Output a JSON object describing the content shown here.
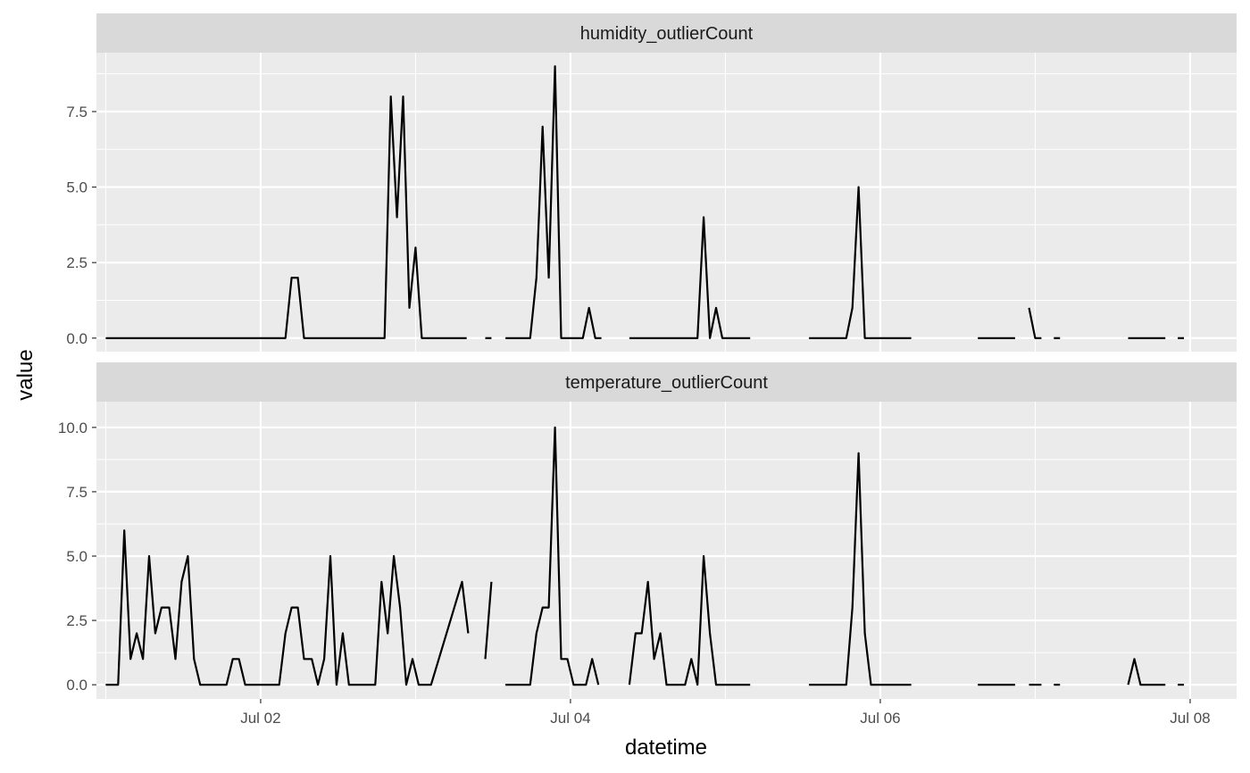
{
  "chart_data": {
    "type": "line",
    "facet_layout": "stacked vertically, shared x-axis",
    "xlabel": "datetime",
    "ylabel": "value",
    "x_ticks": [
      "Jul 02",
      "Jul 04",
      "Jul 06",
      "Jul 08"
    ],
    "x_tick_values": [
      1,
      3,
      5,
      7
    ],
    "xlim": [
      -0.06,
      7.3
    ],
    "grid": true,
    "line_color": "#000000",
    "panel_background": "#ebebeb",
    "strip_background": "#d9d9d9",
    "x_unit_note": "x values are days after Jul 01 00:00",
    "panels": [
      {
        "name": "humidity_outlierCount",
        "ylim": [
          -0.45,
          9.45
        ],
        "y_ticks": [
          0.0,
          2.5,
          5.0,
          7.5
        ],
        "y_tick_labels": [
          "0.0",
          "2.5",
          "5.0",
          "7.5"
        ],
        "segments": [
          [
            [
              0.0,
              0
            ],
            [
              1.16,
              0
            ],
            [
              1.2,
              2
            ],
            [
              1.24,
              2
            ],
            [
              1.28,
              0
            ],
            [
              1.8,
              0
            ],
            [
              1.84,
              8
            ],
            [
              1.88,
              4
            ],
            [
              1.92,
              8
            ],
            [
              1.96,
              1
            ],
            [
              2.0,
              3
            ],
            [
              2.04,
              0
            ],
            [
              2.33,
              0
            ]
          ],
          [
            [
              2.45,
              0
            ],
            [
              2.49,
              0
            ]
          ],
          [
            [
              2.58,
              0
            ],
            [
              2.74,
              0
            ],
            [
              2.78,
              2
            ],
            [
              2.82,
              7
            ],
            [
              2.86,
              2
            ],
            [
              2.9,
              9
            ],
            [
              2.94,
              0
            ],
            [
              3.08,
              0
            ],
            [
              3.12,
              1
            ],
            [
              3.16,
              0
            ],
            [
              3.2,
              0
            ]
          ],
          [
            [
              3.38,
              0
            ],
            [
              3.82,
              0
            ],
            [
              3.86,
              4
            ],
            [
              3.9,
              0
            ],
            [
              3.94,
              1
            ],
            [
              3.98,
              0
            ],
            [
              4.16,
              0
            ]
          ],
          [
            [
              4.54,
              0
            ],
            [
              4.78,
              0
            ],
            [
              4.82,
              1
            ],
            [
              4.86,
              5
            ],
            [
              4.9,
              0
            ],
            [
              5.2,
              0
            ]
          ],
          [
            [
              5.63,
              0
            ],
            [
              5.87,
              0
            ]
          ],
          [
            [
              5.96,
              1
            ],
            [
              6.0,
              0
            ],
            [
              6.04,
              0
            ]
          ],
          [
            [
              6.12,
              0
            ],
            [
              6.16,
              0
            ]
          ],
          [
            [
              6.6,
              0
            ],
            [
              6.84,
              0
            ]
          ],
          [
            [
              6.92,
              0
            ],
            [
              6.96,
              0
            ]
          ]
        ]
      },
      {
        "name": "temperature_outlierCount",
        "ylim": [
          -0.55,
          11.0
        ],
        "y_ticks": [
          0.0,
          2.5,
          5.0,
          7.5,
          10.0
        ],
        "y_tick_labels": [
          "0.0",
          "2.5",
          "5.0",
          "7.5",
          "10.0"
        ],
        "segments": [
          [
            [
              0.0,
              0
            ],
            [
              0.08,
              0
            ],
            [
              0.12,
              6
            ],
            [
              0.16,
              1
            ],
            [
              0.2,
              2
            ],
            [
              0.24,
              1
            ],
            [
              0.28,
              5
            ],
            [
              0.32,
              2
            ],
            [
              0.36,
              3
            ],
            [
              0.41,
              3
            ],
            [
              0.45,
              1
            ],
            [
              0.49,
              4
            ],
            [
              0.53,
              5
            ],
            [
              0.57,
              1
            ],
            [
              0.61,
              0
            ],
            [
              0.78,
              0
            ],
            [
              0.82,
              1
            ],
            [
              0.86,
              1
            ],
            [
              0.9,
              0
            ],
            [
              1.12,
              0
            ],
            [
              1.16,
              2
            ],
            [
              1.2,
              3
            ],
            [
              1.24,
              3
            ],
            [
              1.28,
              1
            ],
            [
              1.33,
              1
            ],
            [
              1.37,
              0
            ],
            [
              1.41,
              1
            ],
            [
              1.45,
              5
            ],
            [
              1.49,
              0
            ],
            [
              1.53,
              2
            ],
            [
              1.57,
              0
            ],
            [
              1.74,
              0
            ],
            [
              1.78,
              4
            ],
            [
              1.82,
              2
            ],
            [
              1.86,
              5
            ],
            [
              1.9,
              3
            ],
            [
              1.94,
              0
            ],
            [
              1.98,
              1
            ],
            [
              2.02,
              0
            ],
            [
              2.1,
              0
            ],
            [
              2.3,
              4
            ],
            [
              2.34,
              2
            ]
          ],
          [
            [
              2.45,
              1
            ],
            [
              2.49,
              4
            ]
          ],
          [
            [
              2.58,
              0
            ],
            [
              2.74,
              0
            ],
            [
              2.78,
              2
            ],
            [
              2.82,
              3
            ],
            [
              2.86,
              3
            ],
            [
              2.9,
              10
            ],
            [
              2.94,
              1
            ],
            [
              2.98,
              1
            ],
            [
              3.02,
              0
            ],
            [
              3.1,
              0
            ],
            [
              3.14,
              1
            ],
            [
              3.18,
              0
            ]
          ],
          [
            [
              3.38,
              0
            ],
            [
              3.42,
              2
            ],
            [
              3.46,
              2
            ],
            [
              3.5,
              4
            ],
            [
              3.54,
              1
            ],
            [
              3.58,
              2
            ],
            [
              3.62,
              0
            ],
            [
              3.74,
              0
            ],
            [
              3.78,
              1
            ],
            [
              3.82,
              0
            ],
            [
              3.86,
              5
            ],
            [
              3.9,
              2
            ],
            [
              3.94,
              0
            ],
            [
              4.16,
              0
            ]
          ],
          [
            [
              4.54,
              0
            ],
            [
              4.78,
              0
            ],
            [
              4.82,
              3
            ],
            [
              4.86,
              9
            ],
            [
              4.9,
              2
            ],
            [
              4.94,
              0
            ],
            [
              5.2,
              0
            ]
          ],
          [
            [
              5.63,
              0
            ],
            [
              5.87,
              0
            ]
          ],
          [
            [
              5.96,
              0
            ],
            [
              6.04,
              0
            ]
          ],
          [
            [
              6.12,
              0
            ],
            [
              6.16,
              0
            ]
          ],
          [
            [
              6.6,
              0
            ],
            [
              6.64,
              1
            ],
            [
              6.68,
              0
            ],
            [
              6.84,
              0
            ]
          ],
          [
            [
              6.92,
              0
            ],
            [
              6.96,
              0
            ]
          ]
        ]
      }
    ]
  }
}
